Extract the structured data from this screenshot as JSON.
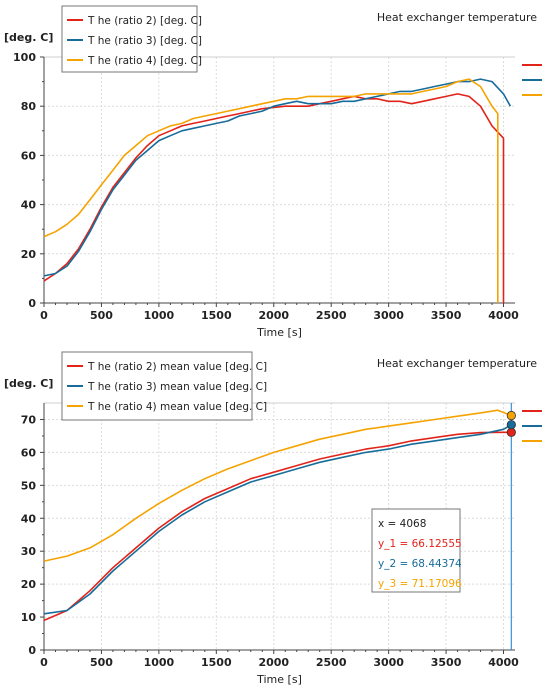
{
  "chart_data": [
    {
      "type": "line",
      "title": "Heat exchanger temperature",
      "ylabel": "[deg. C]",
      "xlabel": "Time [s]",
      "xlim": [
        0,
        4100
      ],
      "ylim": [
        0,
        100
      ],
      "xticks": [
        0,
        500,
        1000,
        1500,
        2000,
        2500,
        3000,
        3500,
        4000
      ],
      "yticks": [
        0,
        20,
        40,
        60,
        80,
        100
      ],
      "grid": true,
      "legend_position": "top-left",
      "series": [
        {
          "name": "T he (ratio 2) [deg. C]",
          "color": "#e2231a",
          "points": [
            [
              0,
              9
            ],
            [
              100,
              12
            ],
            [
              200,
              16
            ],
            [
              300,
              22
            ],
            [
              400,
              30
            ],
            [
              500,
              39
            ],
            [
              600,
              47
            ],
            [
              700,
              53
            ],
            [
              800,
              59
            ],
            [
              900,
              64
            ],
            [
              1000,
              68
            ],
            [
              1100,
              70
            ],
            [
              1200,
              72
            ],
            [
              1300,
              73
            ],
            [
              1400,
              74
            ],
            [
              1500,
              75
            ],
            [
              1600,
              76
            ],
            [
              1700,
              77
            ],
            [
              1800,
              78
            ],
            [
              1900,
              79
            ],
            [
              2000,
              79.5
            ],
            [
              2100,
              80
            ],
            [
              2200,
              80
            ],
            [
              2300,
              80
            ],
            [
              2400,
              81
            ],
            [
              2500,
              82
            ],
            [
              2600,
              83
            ],
            [
              2700,
              84
            ],
            [
              2800,
              83
            ],
            [
              2900,
              83
            ],
            [
              3000,
              82
            ],
            [
              3100,
              82
            ],
            [
              3200,
              81
            ],
            [
              3300,
              82
            ],
            [
              3400,
              83
            ],
            [
              3500,
              84
            ],
            [
              3600,
              85
            ],
            [
              3700,
              84
            ],
            [
              3800,
              80
            ],
            [
              3900,
              72
            ],
            [
              4000,
              67
            ],
            [
              4000,
              0
            ]
          ]
        },
        {
          "name": "T he (ratio 3) [deg. C]",
          "color": "#176c9a",
          "points": [
            [
              0,
              11
            ],
            [
              100,
              12
            ],
            [
              200,
              15
            ],
            [
              300,
              21
            ],
            [
              400,
              29
            ],
            [
              500,
              38
            ],
            [
              600,
              46
            ],
            [
              700,
              52
            ],
            [
              800,
              58
            ],
            [
              900,
              62
            ],
            [
              1000,
              66
            ],
            [
              1100,
              68
            ],
            [
              1200,
              70
            ],
            [
              1300,
              71
            ],
            [
              1400,
              72
            ],
            [
              1500,
              73
            ],
            [
              1600,
              74
            ],
            [
              1700,
              76
            ],
            [
              1800,
              77
            ],
            [
              1900,
              78
            ],
            [
              2000,
              80
            ],
            [
              2100,
              81
            ],
            [
              2200,
              82
            ],
            [
              2300,
              81
            ],
            [
              2400,
              81
            ],
            [
              2500,
              81
            ],
            [
              2600,
              82
            ],
            [
              2700,
              82
            ],
            [
              2800,
              83
            ],
            [
              2900,
              84
            ],
            [
              3000,
              85
            ],
            [
              3100,
              86
            ],
            [
              3200,
              86
            ],
            [
              3300,
              87
            ],
            [
              3400,
              88
            ],
            [
              3500,
              89
            ],
            [
              3600,
              90
            ],
            [
              3700,
              90
            ],
            [
              3800,
              91
            ],
            [
              3900,
              90
            ],
            [
              4000,
              85
            ],
            [
              4060,
              80
            ]
          ]
        },
        {
          "name": "T he (ratio 4) [deg. C]",
          "color": "#f5a300",
          "points": [
            [
              0,
              27
            ],
            [
              100,
              29
            ],
            [
              200,
              32
            ],
            [
              300,
              36
            ],
            [
              400,
              42
            ],
            [
              500,
              48
            ],
            [
              600,
              54
            ],
            [
              700,
              60
            ],
            [
              800,
              64
            ],
            [
              900,
              68
            ],
            [
              1000,
              70
            ],
            [
              1100,
              72
            ],
            [
              1200,
              73
            ],
            [
              1300,
              75
            ],
            [
              1400,
              76
            ],
            [
              1500,
              77
            ],
            [
              1600,
              78
            ],
            [
              1700,
              79
            ],
            [
              1800,
              80
            ],
            [
              1900,
              81
            ],
            [
              2000,
              82
            ],
            [
              2100,
              83
            ],
            [
              2200,
              83
            ],
            [
              2300,
              84
            ],
            [
              2400,
              84
            ],
            [
              2500,
              84
            ],
            [
              2600,
              84
            ],
            [
              2700,
              84
            ],
            [
              2800,
              85
            ],
            [
              2900,
              85
            ],
            [
              3000,
              85
            ],
            [
              3100,
              85
            ],
            [
              3200,
              85
            ],
            [
              3300,
              86
            ],
            [
              3400,
              87
            ],
            [
              3500,
              88
            ],
            [
              3600,
              90
            ],
            [
              3700,
              91
            ],
            [
              3800,
              88
            ],
            [
              3900,
              80
            ],
            [
              3950,
              77
            ],
            [
              3950,
              0
            ]
          ]
        }
      ]
    },
    {
      "type": "line",
      "title": "Heat exchanger temperature",
      "ylabel": "[deg. C]",
      "xlabel": "Time [s]",
      "xlim": [
        0,
        4100
      ],
      "ylim": [
        0,
        75
      ],
      "xticks": [
        0,
        500,
        1000,
        1500,
        2000,
        2500,
        3000,
        3500,
        4000
      ],
      "yticks": [
        0,
        10,
        20,
        30,
        40,
        50,
        60,
        70
      ],
      "grid": true,
      "legend_position": "top-left",
      "series": [
        {
          "name": "T he (ratio 2) mean value [deg. C]",
          "color": "#e2231a",
          "points": [
            [
              0,
              9
            ],
            [
              200,
              12
            ],
            [
              400,
              18
            ],
            [
              600,
              25
            ],
            [
              800,
              31
            ],
            [
              1000,
              37
            ],
            [
              1200,
              42
            ],
            [
              1400,
              46
            ],
            [
              1600,
              49
            ],
            [
              1800,
              52
            ],
            [
              2000,
              54
            ],
            [
              2200,
              56
            ],
            [
              2400,
              58
            ],
            [
              2600,
              59.5
            ],
            [
              2800,
              61
            ],
            [
              3000,
              62
            ],
            [
              3200,
              63.5
            ],
            [
              3400,
              64.5
            ],
            [
              3600,
              65.5
            ],
            [
              3800,
              66
            ],
            [
              4000,
              66.1
            ],
            [
              4068,
              66.1
            ]
          ]
        },
        {
          "name": "T he (ratio 3) mean value [deg. C]",
          "color": "#176c9a",
          "points": [
            [
              0,
              11
            ],
            [
              200,
              12
            ],
            [
              400,
              17
            ],
            [
              600,
              24
            ],
            [
              800,
              30
            ],
            [
              1000,
              36
            ],
            [
              1200,
              41
            ],
            [
              1400,
              45
            ],
            [
              1600,
              48
            ],
            [
              1800,
              51
            ],
            [
              2000,
              53
            ],
            [
              2200,
              55
            ],
            [
              2400,
              57
            ],
            [
              2600,
              58.5
            ],
            [
              2800,
              60
            ],
            [
              3000,
              61
            ],
            [
              3200,
              62.5
            ],
            [
              3400,
              63.5
            ],
            [
              3600,
              64.5
            ],
            [
              3800,
              65.5
            ],
            [
              4000,
              67
            ],
            [
              4068,
              68.4
            ]
          ]
        },
        {
          "name": "T he (ratio 4) mean value [deg. C]",
          "color": "#f5a300",
          "points": [
            [
              0,
              27
            ],
            [
              200,
              28.5
            ],
            [
              400,
              31
            ],
            [
              600,
              35
            ],
            [
              800,
              40
            ],
            [
              1000,
              44.5
            ],
            [
              1200,
              48.5
            ],
            [
              1400,
              52
            ],
            [
              1600,
              55
            ],
            [
              1800,
              57.5
            ],
            [
              2000,
              60
            ],
            [
              2200,
              62
            ],
            [
              2400,
              64
            ],
            [
              2600,
              65.5
            ],
            [
              2800,
              67
            ],
            [
              3000,
              68
            ],
            [
              3200,
              69
            ],
            [
              3400,
              70
            ],
            [
              3600,
              71
            ],
            [
              3800,
              72
            ],
            [
              3950,
              72.8
            ],
            [
              4068,
              71.2
            ]
          ]
        }
      ],
      "cursor": {
        "x_value": 4068,
        "lines": [
          {
            "text": "x     = 4068",
            "color": "#222222"
          },
          {
            "text": "y_1 = 66.12555",
            "color": "#e2231a"
          },
          {
            "text": "y_2 = 68.44374",
            "color": "#176c9a"
          },
          {
            "text": "y_3 = 71.17096",
            "color": "#f5a300"
          }
        ]
      }
    }
  ]
}
